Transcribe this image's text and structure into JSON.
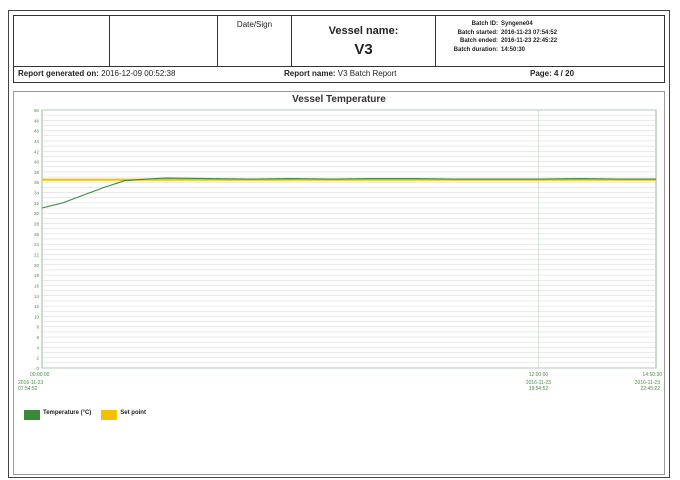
{
  "header": {
    "date_sign_label": "Date/Sign",
    "vessel_name_label": "Vessel name:",
    "vessel_name_value": "V3",
    "batch": [
      {
        "key": "Batch ID:",
        "value": "Syngene04"
      },
      {
        "key": "Batch started:",
        "value": "2016-11-23 07:54:52"
      },
      {
        "key": "Batch ended:",
        "value": "2016-11-23 22:45:22"
      },
      {
        "key": "Batch duration:",
        "value": "14:50:30"
      }
    ],
    "generated_label": "Report generated on:",
    "generated_value": "2016-12-09 00:52:38",
    "report_name_label": "Report name:",
    "report_name_value": "V3 Batch Report",
    "page_text": "Page:  4  /  20"
  },
  "chart_data": {
    "type": "line",
    "title": "Vessel Temperature",
    "xlabel": "",
    "ylabel": "",
    "ylim": [
      0,
      50
    ],
    "y_ticks": [
      0,
      2,
      4,
      6,
      8,
      10,
      12,
      14,
      16,
      18,
      20,
      22,
      24,
      26,
      28,
      30,
      32,
      34,
      36,
      38,
      40,
      42,
      44,
      46,
      48,
      50
    ],
    "x_range_hours": [
      0,
      14.842
    ],
    "x_ticks": [
      {
        "x": 0,
        "time": "00:00:00",
        "date": "2016-11-23",
        "clock": "07:54:52"
      },
      {
        "x": 12,
        "time": "12:00:00",
        "date": "2016-11-23",
        "clock": "19:54:52"
      },
      {
        "x": 14.842,
        "time": "14:50:30",
        "date": "2016-11-23",
        "clock": "22:45:22"
      }
    ],
    "grid": true,
    "legend_position": "bottom-left",
    "series": [
      {
        "name": "Temperature (°C)",
        "color": "#3a8a3a",
        "x": [
          0,
          0.5,
          1,
          1.5,
          2,
          2.5,
          3,
          4,
          5,
          6,
          7,
          8,
          9,
          10,
          11,
          12,
          13,
          14,
          14.842
        ],
        "y": [
          31,
          32,
          33.5,
          35,
          36.3,
          36.6,
          36.8,
          36.7,
          36.6,
          36.7,
          36.6,
          36.7,
          36.7,
          36.6,
          36.6,
          36.6,
          36.7,
          36.6,
          36.6
        ]
      },
      {
        "name": "Set point",
        "color": "#f2c200",
        "x": [
          0,
          14.842
        ],
        "y": [
          36.5,
          36.5
        ]
      }
    ]
  }
}
